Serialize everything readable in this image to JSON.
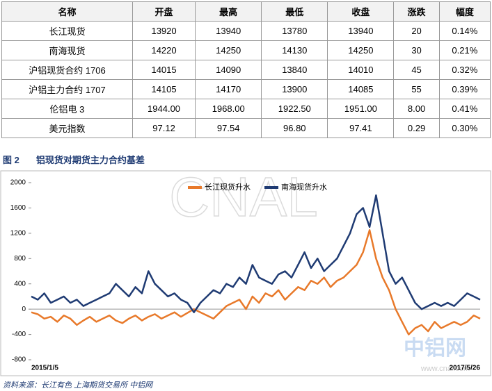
{
  "table": {
    "header": [
      "名称",
      "开盘",
      "最高",
      "最低",
      "收盘",
      "涨跌",
      "幅度"
    ],
    "rows": [
      [
        "长江现货",
        "13920",
        "13940",
        "13780",
        "13940",
        "20",
        "0.14%"
      ],
      [
        "南海现货",
        "14220",
        "14250",
        "14130",
        "14250",
        "30",
        "0.21%"
      ],
      [
        "沪铝现货合约 1706",
        "14015",
        "14090",
        "13840",
        "14010",
        "45",
        "0.32%"
      ],
      [
        "沪铝主力合约 1707",
        "14105",
        "14170",
        "13900",
        "14085",
        "55",
        "0.39%"
      ],
      [
        "伦铝电 3",
        "1944.00",
        "1968.00",
        "1922.50",
        "1951.00",
        "8.00",
        "0.41%"
      ],
      [
        "美元指数",
        "97.12",
        "97.54",
        "96.80",
        "97.41",
        "0.29",
        "0.30%"
      ]
    ]
  },
  "figure": {
    "label": "图 2",
    "caption": "铝现货对期货主力合约基差"
  },
  "chart_data": {
    "type": "line",
    "categories": [
      "2015/1/5",
      null,
      null,
      null,
      null,
      null,
      null,
      null,
      null,
      null,
      null,
      null,
      null,
      null,
      null,
      null,
      null,
      null,
      null,
      null,
      null,
      null,
      null,
      null,
      null,
      null,
      null,
      null,
      null,
      null,
      null,
      null,
      null,
      null,
      null,
      null,
      null,
      null,
      null,
      null,
      null,
      null,
      null,
      null,
      null,
      null,
      null,
      null,
      null,
      null,
      null,
      null,
      null,
      null,
      null,
      null,
      null,
      null,
      null,
      null,
      null,
      null,
      null,
      null,
      null,
      null,
      null,
      null,
      null,
      "2017/5/26"
    ],
    "series": [
      {
        "name": "长江现货升水",
        "color": "#e8792a",
        "values": [
          -50,
          -80,
          -150,
          -120,
          -200,
          -100,
          -150,
          -250,
          -180,
          -120,
          -200,
          -150,
          -100,
          -180,
          -220,
          -150,
          -100,
          -180,
          -120,
          -80,
          -150,
          -100,
          -50,
          -120,
          -60,
          0,
          -50,
          -100,
          -150,
          -50,
          50,
          100,
          150,
          0,
          200,
          100,
          250,
          200,
          300,
          150,
          250,
          350,
          300,
          450,
          400,
          500,
          350,
          450,
          500,
          600,
          700,
          900,
          1250,
          800,
          500,
          300,
          0,
          -200,
          -400,
          -300,
          -250,
          -350,
          -200,
          -300,
          -250,
          -200,
          -250,
          -200,
          -100,
          -150
        ]
      },
      {
        "name": "南海现货升水",
        "color": "#1f3b73",
        "values": [
          200,
          150,
          250,
          100,
          150,
          200,
          100,
          150,
          50,
          100,
          150,
          200,
          250,
          400,
          300,
          200,
          350,
          250,
          600,
          400,
          300,
          200,
          250,
          150,
          100,
          -50,
          100,
          200,
          300,
          250,
          400,
          350,
          500,
          400,
          700,
          500,
          450,
          400,
          550,
          600,
          500,
          700,
          900,
          650,
          800,
          600,
          700,
          800,
          1000,
          1200,
          1500,
          1600,
          1300,
          1800,
          1200,
          600,
          400,
          500,
          300,
          100,
          0,
          50,
          100,
          50,
          100,
          50,
          150,
          250,
          200,
          150
        ]
      }
    ],
    "ylim": [
      -800,
      2000
    ],
    "yticks": [
      -800,
      -400,
      0,
      400,
      800,
      1200,
      1600,
      2000
    ],
    "legend": "top"
  },
  "watermarks": [
    "CNAL",
    "中铝网",
    "www.cnal.com"
  ],
  "source": "资料来源：长江有色   上海期货交易所   中铝网"
}
